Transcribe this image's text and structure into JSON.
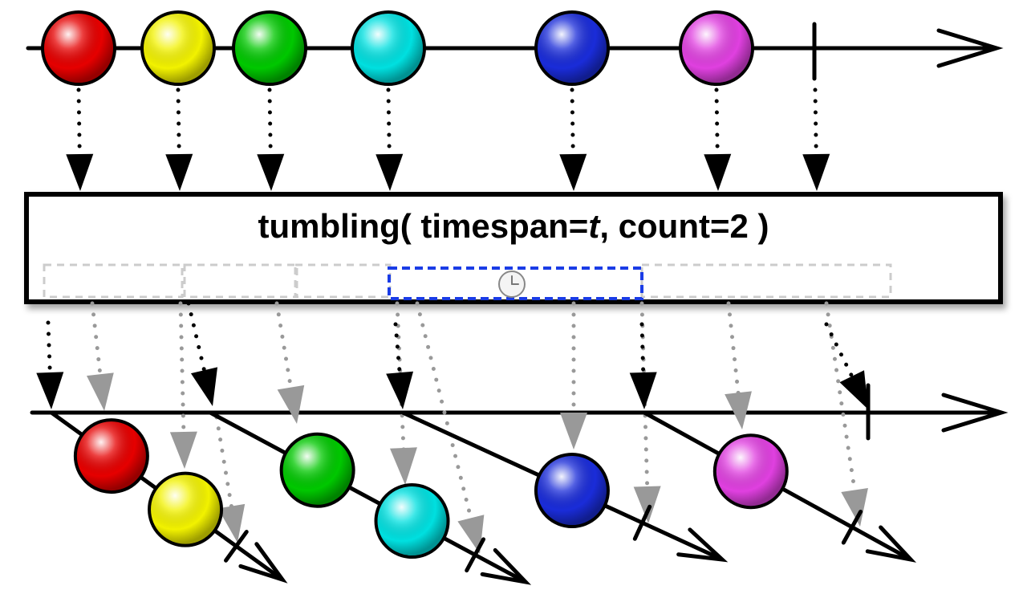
{
  "operator": {
    "prefix": "tumbling( timespan=",
    "param": "t",
    "suffix": ", count=2 )"
  },
  "colors": {
    "red": "#e60000",
    "yellow": "#f2f200",
    "green": "#00c800",
    "cyan": "#00e0e0",
    "blue": "#1a2cd9",
    "magenta": "#e040e0",
    "window_highlight": "#1a3ce6",
    "window_faded": "#cccccc",
    "faded_arrow": "#999999"
  },
  "source_marbles": [
    "red",
    "yellow",
    "green",
    "cyan",
    "blue",
    "magenta"
  ],
  "windows": [
    {
      "marbles": [
        "red",
        "yellow"
      ],
      "ended_by": "count"
    },
    {
      "marbles": [
        "green",
        "cyan"
      ],
      "ended_by": "count"
    },
    {
      "marbles": [
        "blue"
      ],
      "ended_by": "timespan"
    },
    {
      "marbles": [
        "magenta"
      ],
      "ended_by": "completion"
    }
  ],
  "icons": [
    "clock-icon"
  ]
}
